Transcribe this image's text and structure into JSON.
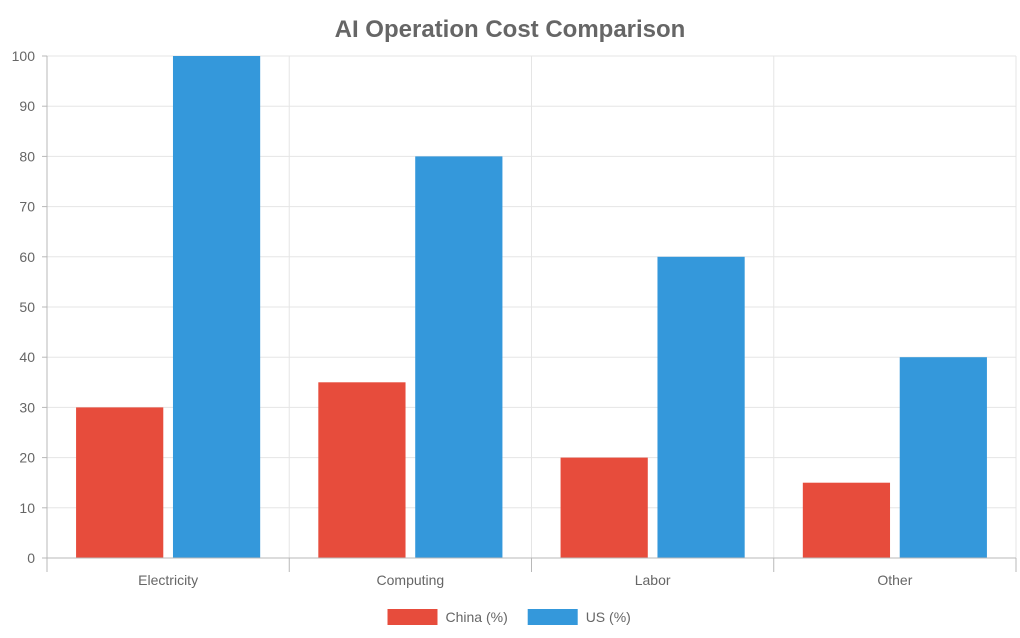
{
  "chart_data": {
    "type": "bar",
    "title": "AI Operation Cost Comparison",
    "categories": [
      "Electricity",
      "Computing",
      "Labor",
      "Other"
    ],
    "series": [
      {
        "name": "China (%)",
        "values": [
          30,
          35,
          20,
          15
        ],
        "color": "#e74c3c"
      },
      {
        "name": "US (%)",
        "values": [
          100,
          80,
          60,
          40
        ],
        "color": "#3498db"
      }
    ],
    "ylim": [
      0,
      100
    ],
    "yticks": [
      0,
      10,
      20,
      30,
      40,
      50,
      60,
      70,
      80,
      90,
      100
    ],
    "grid": true,
    "legend_position": "bottom"
  }
}
